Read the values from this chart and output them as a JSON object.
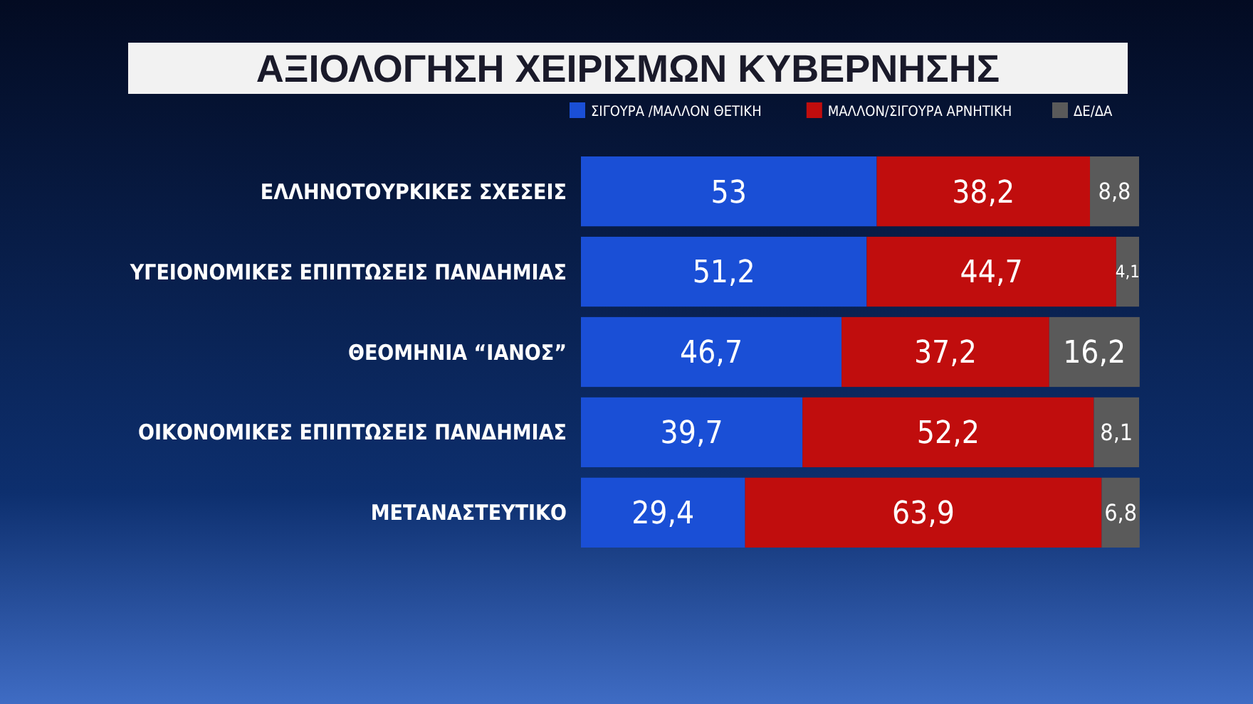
{
  "chart_data": {
    "type": "bar",
    "orientation": "horizontal",
    "stacked": true,
    "title": "ΑΞΙΟΛΟΓΗΣΗ ΧΕΙΡΙΣΜΩΝ ΚΥΒΕΡΝΗΣΗΣ",
    "categories": [
      "ΕΛΛΗΝΟΤΟΥΡΚΙΚΕΣ ΣΧΕΣΕΙΣ",
      "ΥΓΕΙΟΝΟΜΙΚΕΣ ΕΠΙΠΤΩΣΕΙΣ ΠΑΝΔΗΜΙΑΣ",
      "ΘΕΟΜΗΝΙΑ “ΙΑΝΟΣ”",
      "ΟΙΚΟΝΟΜΙΚΕΣ ΕΠΙΠΤΩΣΕΙΣ ΠΑΝΔΗΜΙΑΣ",
      "ΜΕΤΑΝΑΣΤΕΥΤΙΚΟ"
    ],
    "series": [
      {
        "name": "ΣΙΓΟΥΡΑ /ΜΑΛΛΟΝ ΘΕΤΙΚΗ",
        "color": "#1a4fd6",
        "values": [
          53,
          51.2,
          46.7,
          39.7,
          29.4
        ],
        "value_labels": [
          "53",
          "51,2",
          "46,7",
          "39,7",
          "29,4"
        ]
      },
      {
        "name": "ΜΑΛΛΟΝ/ΣΙΓΟΥΡΑ ΑΡΝΗΤΙΚΗ",
        "color": "#c00d0d",
        "values": [
          38.2,
          44.7,
          37.2,
          52.2,
          63.9
        ],
        "value_labels": [
          "38,2",
          "44,7",
          "37,2",
          "52,2",
          "63,9"
        ]
      },
      {
        "name": "ΔΕ/ΔΑ",
        "color": "#5a5a5a",
        "values": [
          8.8,
          4.1,
          16.2,
          8.1,
          6.8
        ],
        "value_labels": [
          "8,8",
          "4,1",
          "16,2",
          "8,1",
          "6,8"
        ]
      }
    ],
    "xlim": [
      0,
      100
    ],
    "tick_labels": "y",
    "legend": "top right",
    "grid": false
  }
}
